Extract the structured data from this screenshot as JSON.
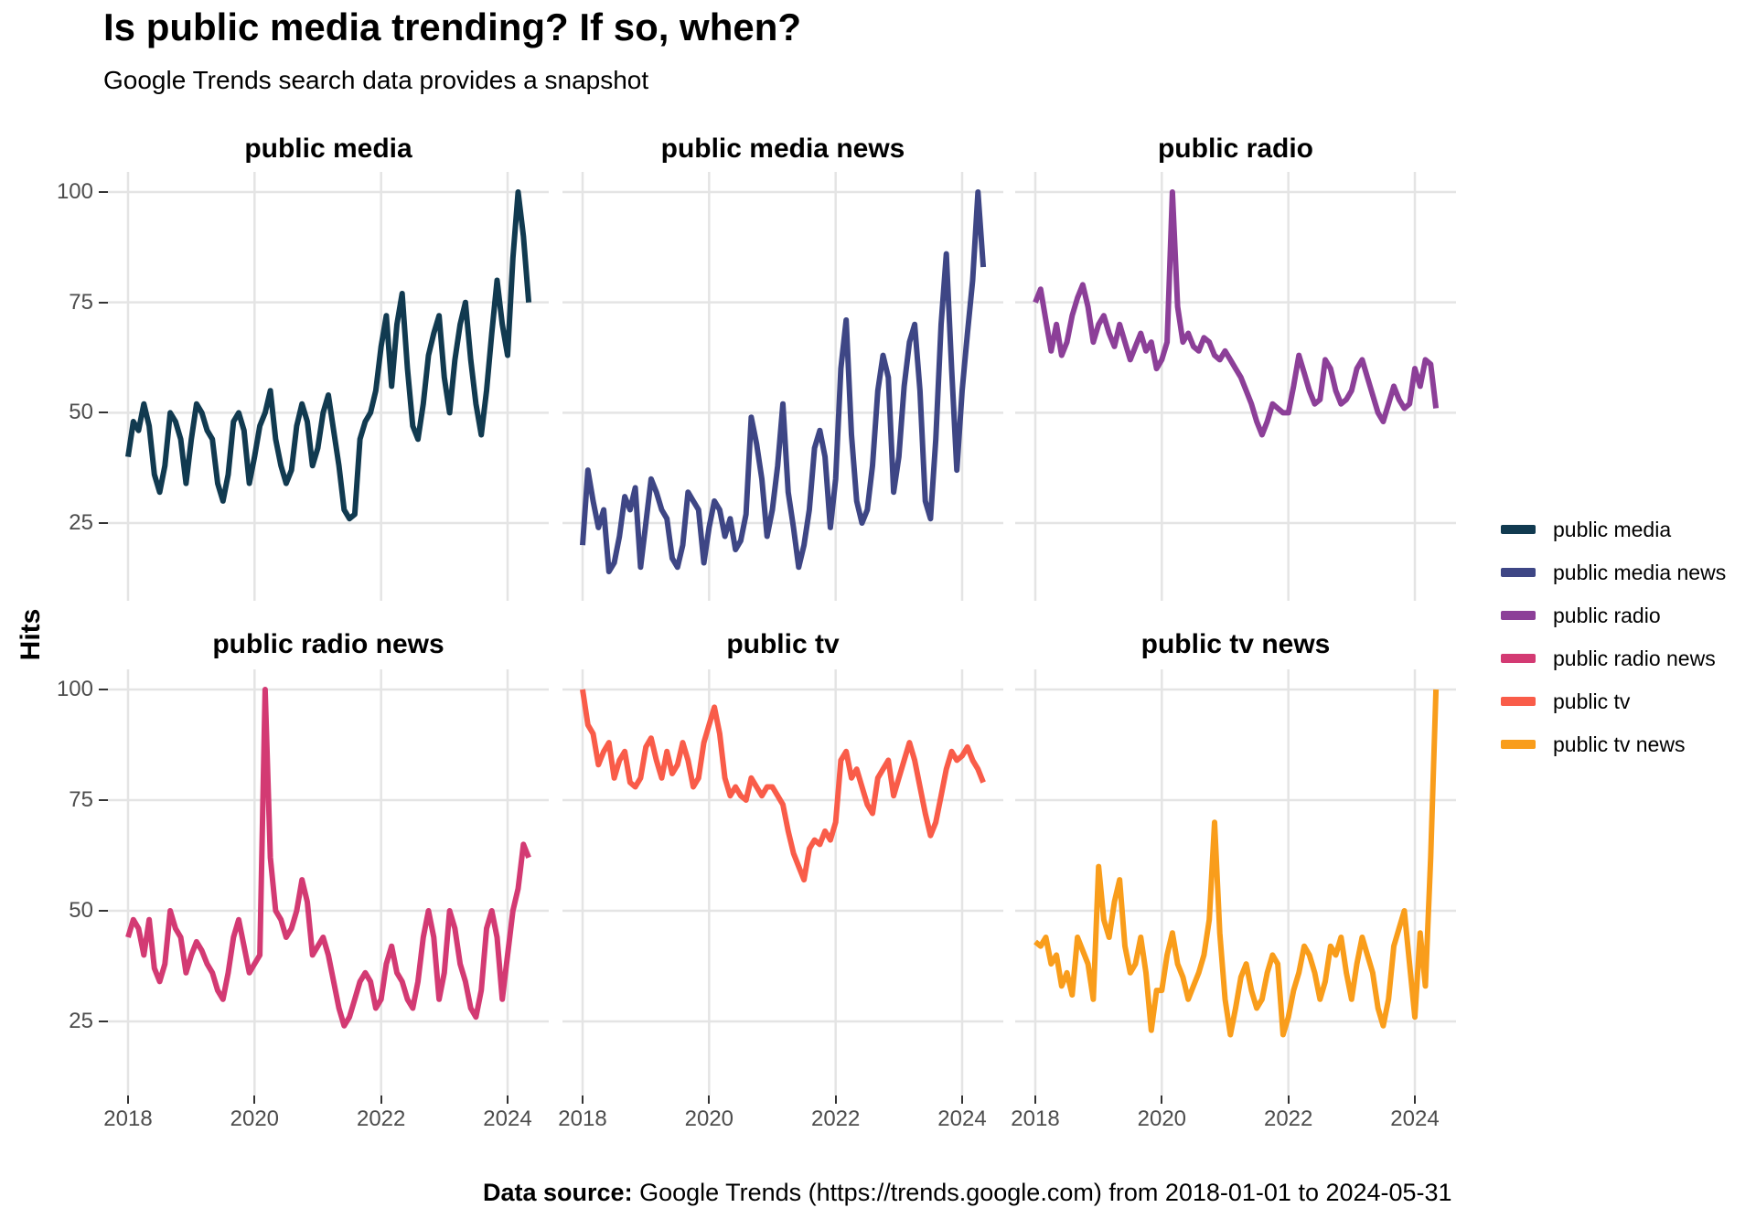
{
  "title": "Is public media trending? If so, when?",
  "subtitle": "Google Trends search data provides a snapshot",
  "y_axis_label": "Hits",
  "caption": {
    "bold": "Data source:",
    "text": " Google Trends (https://trends.google.com) from 2018-01-01 to 2024-05-31"
  },
  "colors": {
    "axis_text": "#4d4d4d",
    "gridline": "#e4e4e4",
    "tick_mark": "#333333",
    "background": "#ffffff"
  },
  "chart_data": {
    "type": "line",
    "title": "Is public media trending? If so, when?",
    "subtitle": "Google Trends search data provides a snapshot",
    "facet_layout": "2 rows x 3 columns, one facet per search term, shared x and y axes",
    "legend_position": "right",
    "grid": "major gridlines only, light gray on white background",
    "x": {
      "label": "",
      "frequency": "monthly",
      "start_month": "2018-01",
      "end_month": "2024-05",
      "n_points_per_series": 77,
      "tick_labels": [
        "2018",
        "2020",
        "2022",
        "2024"
      ]
    },
    "y": {
      "label": "Hits",
      "ticks": [
        100,
        75,
        50,
        25
      ],
      "range_shown": [
        10,
        104
      ]
    },
    "series": [
      {
        "name": "public media",
        "color": "#113A50",
        "values": [
          40,
          48,
          46,
          52,
          47,
          36,
          32,
          38,
          50,
          48,
          44,
          34,
          44,
          52,
          50,
          46,
          44,
          34,
          30,
          36,
          48,
          50,
          46,
          34,
          40,
          47,
          50,
          55,
          44,
          38,
          34,
          37,
          47,
          52,
          48,
          38,
          42,
          50,
          54,
          46,
          38,
          28,
          26,
          27,
          44,
          48,
          50,
          55,
          65,
          72,
          56,
          70,
          77,
          60,
          47,
          44,
          52,
          63,
          68,
          72,
          58,
          50,
          62,
          70,
          75,
          62,
          52,
          45,
          55,
          68,
          80,
          70,
          63,
          85,
          100,
          90,
          75
        ]
      },
      {
        "name": "public media news",
        "color": "#3E4685",
        "values": [
          20,
          37,
          30,
          24,
          28,
          14,
          16,
          22,
          31,
          28,
          33,
          15,
          25,
          35,
          32,
          28,
          26,
          17,
          15,
          20,
          32,
          30,
          28,
          16,
          24,
          30,
          28,
          22,
          26,
          19,
          21,
          27,
          49,
          43,
          35,
          22,
          28,
          38,
          52,
          32,
          24,
          15,
          20,
          28,
          42,
          46,
          40,
          24,
          35,
          60,
          71,
          45,
          30,
          25,
          28,
          38,
          55,
          63,
          58,
          32,
          40,
          56,
          66,
          70,
          55,
          30,
          26,
          44,
          70,
          86,
          60,
          37,
          55,
          68,
          80,
          100,
          83
        ]
      },
      {
        "name": "public radio",
        "color": "#8C3F98",
        "values": [
          75,
          78,
          71,
          64,
          70,
          63,
          66,
          72,
          76,
          79,
          74,
          66,
          70,
          72,
          68,
          65,
          70,
          66,
          62,
          65,
          68,
          64,
          66,
          60,
          62,
          66,
          100,
          74,
          66,
          68,
          65,
          64,
          67,
          66,
          63,
          62,
          64,
          62,
          60,
          58,
          55,
          52,
          48,
          45,
          48,
          52,
          51,
          50,
          50,
          56,
          63,
          59,
          55,
          52,
          53,
          62,
          60,
          55,
          52,
          53,
          55,
          60,
          62,
          58,
          54,
          50,
          48,
          52,
          56,
          53,
          51,
          52,
          60,
          56,
          62,
          61,
          51
        ]
      },
      {
        "name": "public radio news",
        "color": "#D33A73",
        "values": [
          44,
          48,
          46,
          40,
          48,
          37,
          34,
          38,
          50,
          46,
          44,
          36,
          40,
          43,
          41,
          38,
          36,
          32,
          30,
          36,
          44,
          48,
          42,
          36,
          38,
          40,
          100,
          62,
          50,
          48,
          44,
          46,
          50,
          57,
          52,
          40,
          42,
          44,
          40,
          34,
          28,
          24,
          26,
          30,
          34,
          36,
          34,
          28,
          30,
          38,
          42,
          36,
          34,
          30,
          28,
          34,
          44,
          50,
          44,
          30,
          36,
          50,
          46,
          38,
          34,
          28,
          26,
          32,
          46,
          50,
          44,
          30,
          40,
          50,
          55,
          65,
          62
        ]
      },
      {
        "name": "public tv",
        "color": "#F95C49",
        "values": [
          100,
          92,
          90,
          83,
          86,
          88,
          80,
          84,
          86,
          79,
          78,
          80,
          87,
          89,
          84,
          80,
          86,
          81,
          83,
          88,
          84,
          78,
          80,
          88,
          92,
          96,
          90,
          80,
          76,
          78,
          76,
          75,
          80,
          78,
          76,
          78,
          78,
          76,
          74,
          68,
          63,
          60,
          57,
          64,
          66,
          65,
          68,
          66,
          70,
          84,
          86,
          80,
          82,
          78,
          74,
          72,
          80,
          82,
          84,
          76,
          80,
          84,
          88,
          84,
          78,
          72,
          67,
          70,
          76,
          82,
          86,
          84,
          85,
          87,
          84,
          82,
          79
        ]
      },
      {
        "name": "public tv news",
        "color": "#F99D1B",
        "values": [
          43,
          42,
          44,
          38,
          40,
          33,
          36,
          31,
          44,
          41,
          38,
          30,
          60,
          48,
          44,
          52,
          57,
          42,
          36,
          38,
          44,
          36,
          23,
          32,
          32,
          40,
          45,
          38,
          35,
          30,
          33,
          36,
          40,
          48,
          70,
          45,
          30,
          22,
          28,
          35,
          38,
          32,
          28,
          30,
          36,
          40,
          38,
          22,
          26,
          32,
          36,
          42,
          40,
          36,
          30,
          34,
          42,
          40,
          44,
          36,
          30,
          38,
          44,
          40,
          36,
          28,
          24,
          30,
          42,
          46,
          50,
          38,
          26,
          45,
          33,
          62,
          100
        ]
      }
    ]
  }
}
